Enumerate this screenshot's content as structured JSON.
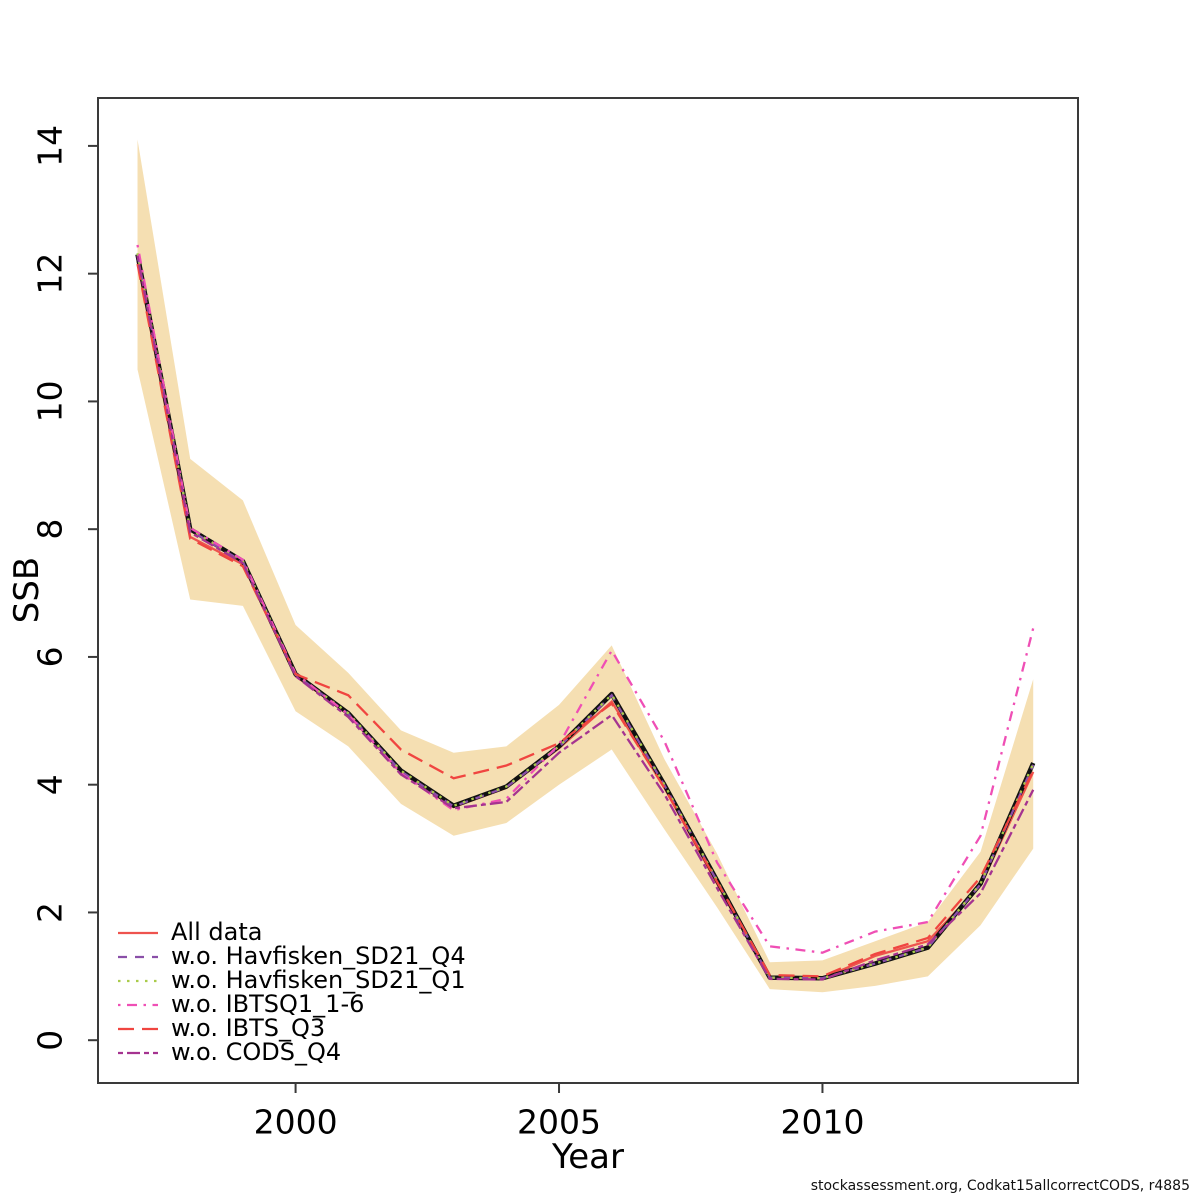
{
  "chart_data": {
    "type": "line",
    "title": "",
    "xlabel": "Year",
    "ylabel": "SSB",
    "footer": "stockassessment.org, Codkat15allcorrectCODS, r4885",
    "axes": {
      "xlim": [
        1996.25,
        2014.85
      ],
      "ylim": [
        -0.67,
        14.75
      ],
      "xticks": [
        2000,
        2005,
        2010
      ],
      "yticks": [
        0,
        2,
        4,
        6,
        8,
        10,
        12,
        14
      ],
      "grid": "off",
      "box_color": "#3a3a3a",
      "legend_position": "bottom-left"
    },
    "x": [
      1997,
      1998,
      1999,
      2000,
      2001,
      2002,
      2003,
      2004,
      2005,
      2006,
      2007,
      2008,
      2009,
      2010,
      2011,
      2012,
      2013,
      2014
    ],
    "band": {
      "name": "confidence-band",
      "color": "#F5DFB2",
      "lower": [
        10.5,
        6.9,
        6.8,
        5.15,
        4.6,
        3.7,
        3.2,
        3.4,
        4.0,
        4.55,
        3.3,
        2.08,
        0.8,
        0.75,
        0.85,
        1.0,
        1.8,
        3.0
      ],
      "upper": [
        14.1,
        9.1,
        8.45,
        6.5,
        5.75,
        4.85,
        4.5,
        4.6,
        5.25,
        6.18,
        4.4,
        2.92,
        1.22,
        1.25,
        1.55,
        1.85,
        2.95,
        5.65
      ]
    },
    "base_line": {
      "name": "base-fit",
      "color": "#111111",
      "width": 4.5,
      "values": [
        12.3,
        8.0,
        7.5,
        5.73,
        5.12,
        4.22,
        3.67,
        3.97,
        4.6,
        5.42,
        4.0,
        2.5,
        0.98,
        0.97,
        1.2,
        1.45,
        2.45,
        4.34
      ]
    },
    "series": [
      {
        "name": "All data",
        "color": "#EE534E",
        "linetype": "solid",
        "values": [
          12.2,
          7.88,
          7.45,
          5.7,
          5.1,
          4.2,
          3.65,
          3.95,
          4.57,
          5.3,
          3.95,
          2.45,
          0.98,
          0.97,
          1.32,
          1.55,
          2.42,
          4.2
        ]
      },
      {
        "name": "w.o. Havfisken_SD21_Q4",
        "color": "#8A4FA8",
        "linetype": "dashed",
        "values": [
          12.3,
          7.98,
          7.49,
          5.72,
          5.11,
          4.21,
          3.66,
          3.96,
          4.59,
          5.4,
          3.99,
          2.49,
          0.98,
          0.97,
          1.2,
          1.45,
          2.44,
          4.31
        ]
      },
      {
        "name": "w.o. Havfisken_SD21_Q1",
        "color": "#A9CB4A",
        "linetype": "dotted",
        "values": [
          12.32,
          8.0,
          7.5,
          5.73,
          5.12,
          4.22,
          3.67,
          3.97,
          4.6,
          5.41,
          4.0,
          2.5,
          0.98,
          0.97,
          1.2,
          1.45,
          2.45,
          4.33
        ]
      },
      {
        "name": "w.o. IBTSQ1_1-6",
        "color": "#EF4FB5",
        "linetype": "dotdash",
        "values": [
          12.45,
          8.02,
          7.52,
          5.74,
          5.1,
          4.18,
          3.6,
          3.78,
          4.63,
          6.1,
          4.68,
          2.78,
          1.47,
          1.37,
          1.7,
          1.85,
          3.2,
          6.45
        ]
      },
      {
        "name": "w.o. IBTS_Q3",
        "color": "#F04540",
        "linetype": "longdash",
        "values": [
          12.15,
          7.85,
          7.42,
          5.73,
          5.4,
          4.55,
          4.1,
          4.3,
          4.65,
          5.27,
          3.95,
          2.48,
          1.02,
          1.0,
          1.35,
          1.6,
          2.55,
          4.22
        ]
      },
      {
        "name": "w.o. CODS_Q4",
        "color": "#A53390",
        "linetype": "twodash",
        "values": [
          12.28,
          7.95,
          7.47,
          5.7,
          5.06,
          4.16,
          3.63,
          3.73,
          4.5,
          5.09,
          3.85,
          2.38,
          0.96,
          0.95,
          1.25,
          1.5,
          2.3,
          3.92
        ]
      }
    ]
  }
}
